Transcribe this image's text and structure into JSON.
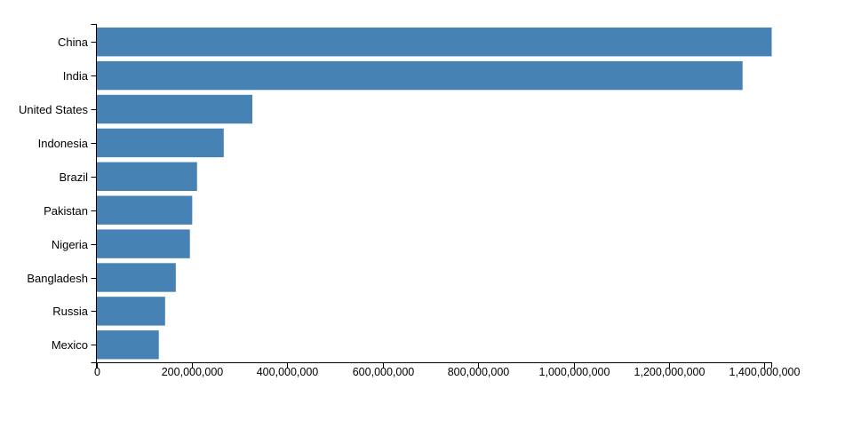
{
  "chart_data": {
    "type": "bar",
    "orientation": "horizontal",
    "title": "",
    "xlabel": "",
    "ylabel": "",
    "categories": [
      "China",
      "India",
      "United States",
      "Indonesia",
      "Brazil",
      "Pakistan",
      "Nigeria",
      "Bangladesh",
      "Russia",
      "Mexico"
    ],
    "values": [
      1415045928,
      1354051854,
      326766748,
      266794980,
      210867954,
      200813818,
      195875237,
      166368149,
      143964709,
      130759074
    ],
    "xlim": [
      0,
      1415045928
    ],
    "x_ticks": [
      0,
      200000000,
      400000000,
      600000000,
      800000000,
      1000000000,
      1200000000,
      1400000000
    ],
    "x_tick_labels": [
      "0",
      "200,000,000",
      "400,000,000",
      "600,000,000",
      "800,000,000",
      "1,000,000,000",
      "1,200,000,000",
      "1,400,000,000"
    ],
    "grid": false,
    "legend": null,
    "colors": {
      "bar": "#4682b4",
      "axis": "#000000",
      "text": "#000000"
    }
  }
}
